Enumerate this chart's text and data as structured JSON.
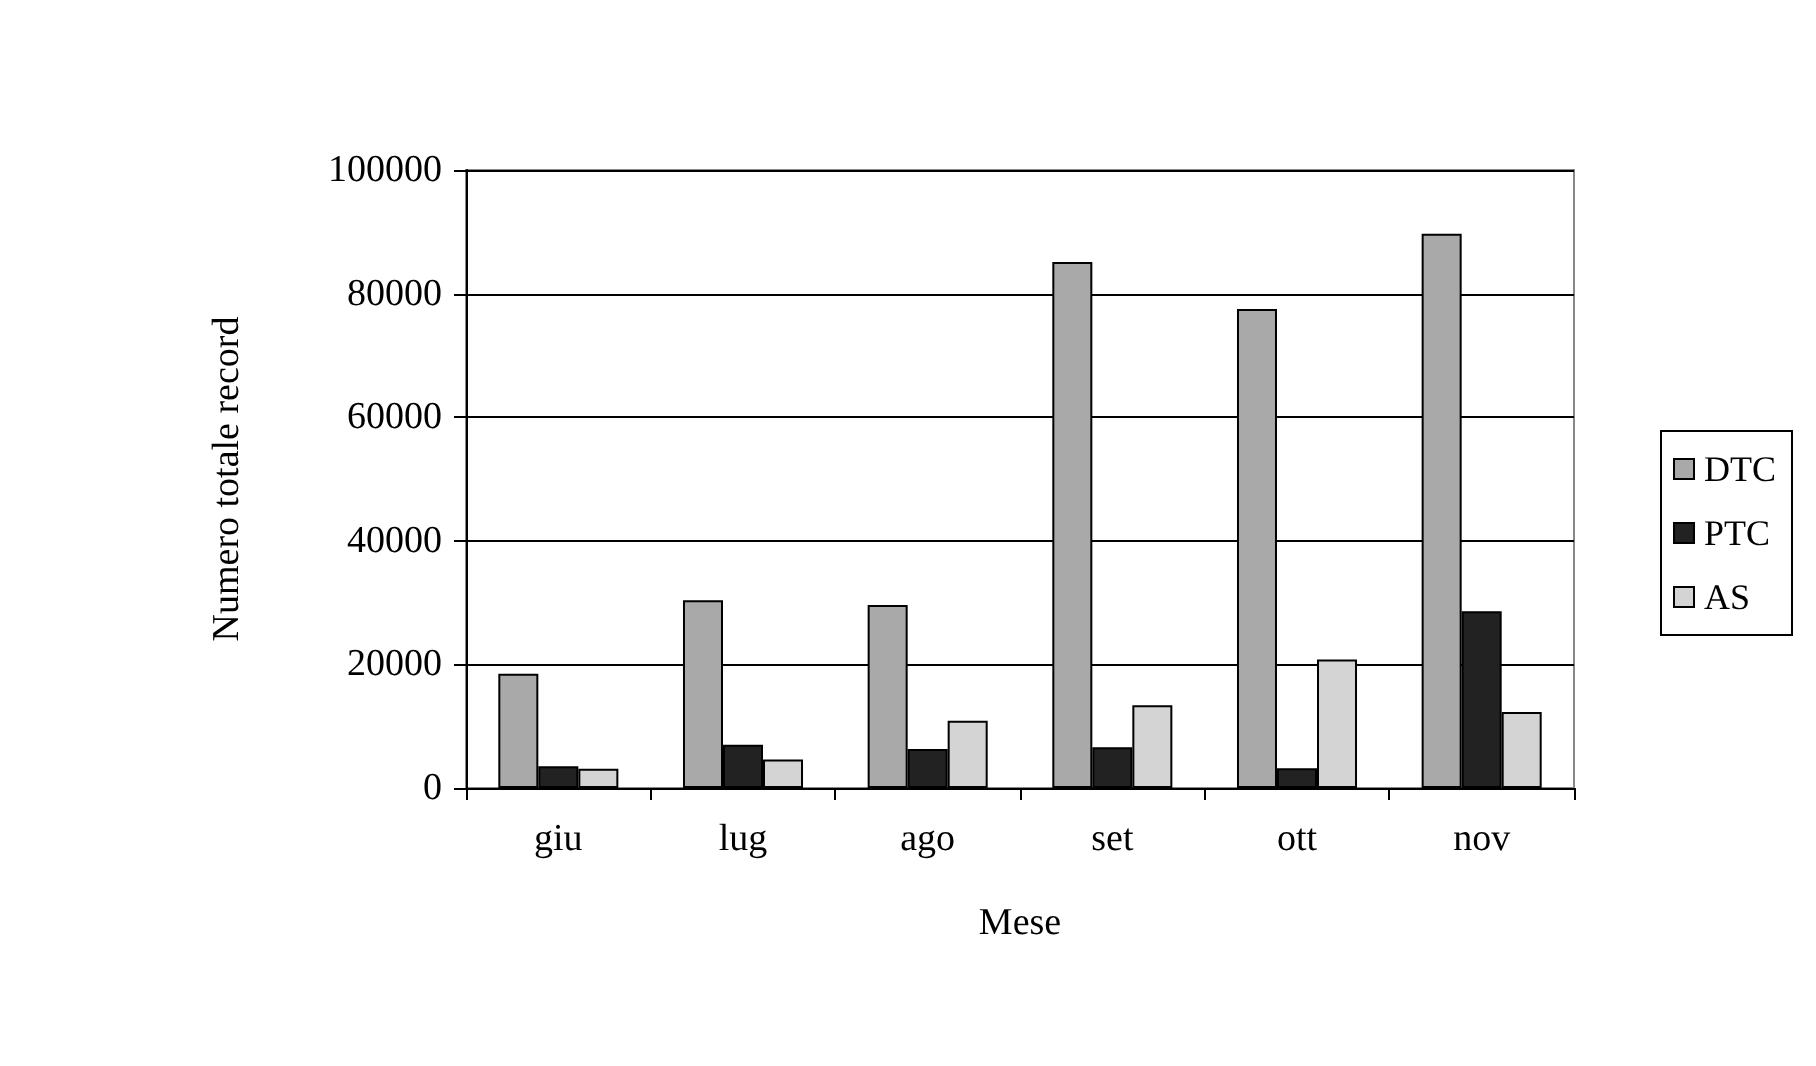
{
  "chart_data": {
    "type": "bar",
    "xlabel": "Mese",
    "ylabel": "Numero totale record",
    "categories": [
      "giu",
      "lug",
      "ago",
      "set",
      "ott",
      "nov"
    ],
    "series": [
      {
        "name": "DTC",
        "color": "#a9a9a9",
        "values": [
          18500,
          30400,
          29600,
          85100,
          77500,
          89700
        ]
      },
      {
        "name": "PTC",
        "color": "#222222",
        "values": [
          3500,
          7000,
          6300,
          6600,
          3200,
          28600
        ]
      },
      {
        "name": "AS",
        "color": "#d4d4d4",
        "values": [
          3100,
          4600,
          10900,
          13400,
          20800,
          12300
        ]
      }
    ],
    "ylim": [
      0,
      100000
    ],
    "yticks": [
      0,
      20000,
      40000,
      60000,
      80000,
      100000
    ],
    "grid": "y",
    "legend": "right"
  }
}
